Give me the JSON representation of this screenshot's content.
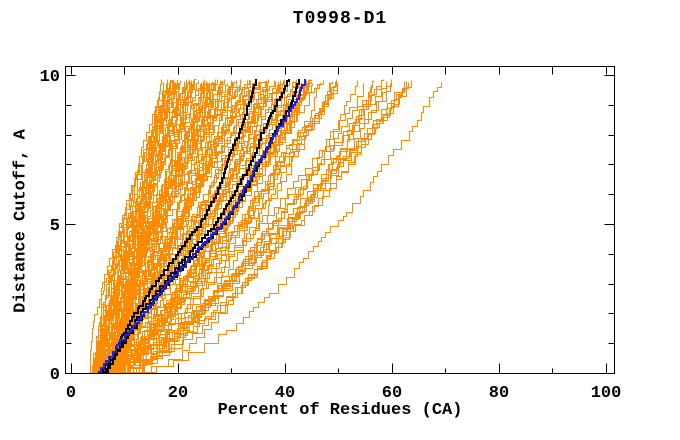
{
  "chart_data": {
    "type": "line",
    "title": "T0998-D1",
    "xlabel": "Percent of Residues (CA)",
    "ylabel": "Distance Cutoff, A",
    "xlim": [
      0,
      100
    ],
    "ylim": [
      0,
      10
    ],
    "grid": false,
    "legend": "none",
    "frame_color": "#000000",
    "background_color": "#FFFFFF",
    "x_major_ticks": [
      0,
      20,
      40,
      60,
      80,
      100
    ],
    "x_tick_labels": [
      "0",
      "20",
      "40",
      "60",
      "80",
      "100"
    ],
    "x_minor_step": 10,
    "y_major_ticks": [
      0,
      5,
      10
    ],
    "y_tick_labels": [
      "0",
      "5",
      "10"
    ],
    "y_minor_step": 1,
    "series_colors": {
      "ensemble_orange": "#FF8C00",
      "highlight_black": "#000000",
      "reference_blue": "#2222DD"
    },
    "highlighted_series": [
      {
        "name": "highlighted-curve-black-1",
        "color": "#000000",
        "points_cutoff_vs_percent": [
          [
            0,
            5.5
          ],
          [
            1,
            9
          ],
          [
            2,
            12
          ],
          [
            3,
            15.5
          ],
          [
            4,
            20
          ],
          [
            5,
            24.5
          ],
          [
            6,
            27.5
          ],
          [
            7,
            29.5
          ],
          [
            8,
            31.5
          ],
          [
            9,
            33.5
          ],
          [
            9.85,
            35
          ]
        ]
      },
      {
        "name": "highlighted-curve-black-2",
        "color": "#000000",
        "points_cutoff_vs_percent": [
          [
            0,
            6
          ],
          [
            1,
            9.5
          ],
          [
            2,
            13
          ],
          [
            3,
            17
          ],
          [
            4,
            21.5
          ],
          [
            5,
            26.5
          ],
          [
            6,
            30
          ],
          [
            7,
            33
          ],
          [
            8,
            35.5
          ],
          [
            9,
            38.5
          ],
          [
            9.85,
            41
          ]
        ]
      },
      {
        "name": "highlighted-curve-black-3",
        "color": "#000000",
        "points_cutoff_vs_percent": [
          [
            0,
            6.5
          ],
          [
            1,
            10
          ],
          [
            2,
            14
          ],
          [
            3,
            18
          ],
          [
            4,
            23
          ],
          [
            5,
            28.5
          ],
          [
            6,
            32
          ],
          [
            7,
            35
          ],
          [
            8,
            38
          ],
          [
            9,
            41
          ],
          [
            9.85,
            43
          ]
        ]
      },
      {
        "name": "reference-curve-blue",
        "color": "#2222DD",
        "points_cutoff_vs_percent": [
          [
            0,
            5
          ],
          [
            1,
            8.5
          ],
          [
            2,
            13.5
          ],
          [
            3,
            17.5
          ],
          [
            4,
            22.5
          ],
          [
            5,
            28
          ],
          [
            6,
            31.5
          ],
          [
            7,
            34.5
          ],
          [
            8,
            38.5
          ],
          [
            9,
            42
          ],
          [
            9.85,
            44.3
          ]
        ]
      }
    ],
    "ensemble": {
      "name": "orange-model-curves",
      "color": "#FF8C00",
      "dense_count": 105,
      "outlier_count": 15,
      "start_percent_range": [
        3.5,
        9.5
      ],
      "dense_end_percent_range": [
        18,
        50
      ],
      "outlier_end_percent_range": [
        50,
        75
      ],
      "cutoff_top": 9.85,
      "seed": 42
    }
  }
}
